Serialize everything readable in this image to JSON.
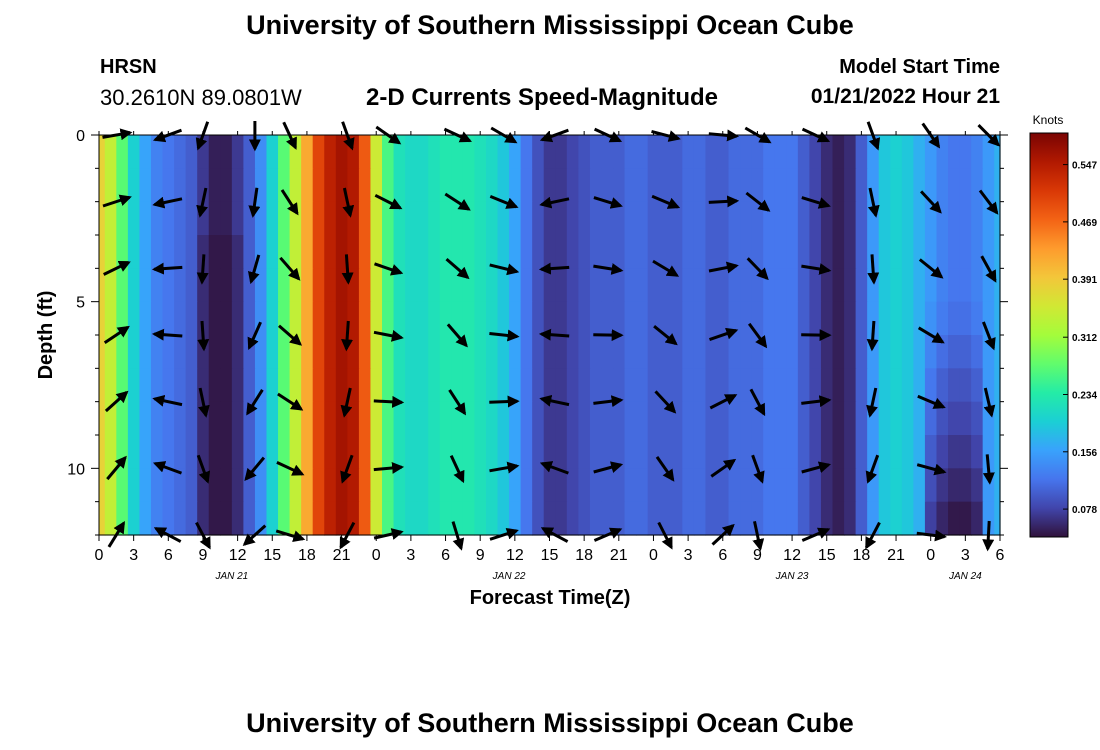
{
  "header": {
    "title": "University of Southern Mississippi Ocean Cube",
    "station": "HRSN",
    "coords": "30.2610N  89.0801W",
    "plot_title": "2-D Currents Speed-Magnitude",
    "start_label": "Model Start Time",
    "start_value": "01/21/2022 Hour 21"
  },
  "footer": {
    "title": "University of Southern Mississippi Ocean Cube"
  },
  "colors": [
    "#30123b",
    "#4145ab",
    "#4675ed",
    "#39a2fc",
    "#1bcfd4",
    "#24eca6",
    "#61fc6c",
    "#a4fc3b",
    "#d1e834",
    "#f3c63a",
    "#fe9b2d",
    "#f36315",
    "#d93806",
    "#b11901",
    "#7a0403"
  ],
  "chart_data": {
    "type": "heatmap",
    "xlabel": "Forecast Time(Z)",
    "ylabel": "Depth (ft)",
    "ylim": [
      0,
      12
    ],
    "y_ticks": [
      0,
      5,
      10
    ],
    "x_tick_labels": [
      "0",
      "3",
      "6",
      "9",
      "12",
      "15",
      "18",
      "21",
      "0",
      "3",
      "6",
      "9",
      "12",
      "15",
      "18",
      "21",
      "0",
      "3",
      "6",
      "9",
      "12",
      "15",
      "18",
      "21",
      "0",
      "3",
      "6"
    ],
    "day_labels": [
      {
        "label": "JAN 21",
        "hour": 11.5
      },
      {
        "label": "JAN 22",
        "hour": 35.5
      },
      {
        "label": "JAN 23",
        "hour": 60
      },
      {
        "label": "JAN 24",
        "hour": 75
      }
    ],
    "x_range": [
      0,
      78
    ],
    "colorbar": {
      "label": "Knots",
      "range": [
        0.04,
        0.59
      ],
      "ticks": [
        "0.078",
        "0.156",
        "0.234",
        "0.312",
        "0.391",
        "0.469",
        "0.547"
      ],
      "tick_values": [
        0.078,
        0.156,
        0.234,
        0.312,
        0.391,
        0.469,
        0.547
      ]
    },
    "speed_profile": {
      "hours": [
        0,
        1,
        2,
        3,
        4,
        5,
        6,
        7,
        8,
        9,
        10,
        11,
        12,
        13,
        14,
        15,
        16,
        17,
        18,
        19,
        20,
        21,
        22,
        23,
        24,
        25,
        26,
        27,
        28,
        29,
        30,
        31,
        32,
        33,
        34,
        35,
        36,
        37,
        38,
        39,
        40,
        41,
        42,
        43,
        44,
        45,
        46,
        47,
        48,
        49,
        50,
        51,
        52,
        53,
        54,
        55,
        56,
        57,
        58,
        59,
        60,
        61,
        62,
        63,
        64,
        65,
        66,
        67,
        68,
        69,
        70,
        71,
        72,
        73,
        74,
        75,
        76,
        77,
        78
      ],
      "values": [
        0.38,
        0.34,
        0.27,
        0.2,
        0.16,
        0.13,
        0.12,
        0.11,
        0.1,
        0.07,
        0.05,
        0.05,
        0.07,
        0.1,
        0.14,
        0.2,
        0.27,
        0.34,
        0.42,
        0.5,
        0.54,
        0.56,
        0.55,
        0.48,
        0.35,
        0.26,
        0.22,
        0.21,
        0.21,
        0.22,
        0.23,
        0.23,
        0.23,
        0.22,
        0.21,
        0.19,
        0.16,
        0.12,
        0.09,
        0.07,
        0.07,
        0.08,
        0.09,
        0.1,
        0.1,
        0.1,
        0.11,
        0.11,
        0.1,
        0.1,
        0.1,
        0.11,
        0.11,
        0.1,
        0.1,
        0.11,
        0.11,
        0.11,
        0.12,
        0.12,
        0.12,
        0.1,
        0.08,
        0.06,
        0.05,
        0.06,
        0.1,
        0.15,
        0.19,
        0.2,
        0.19,
        0.17,
        0.15,
        0.13,
        0.12,
        0.12,
        0.13,
        0.15,
        0.17
      ]
    },
    "vector_depths": [
      0,
      2,
      4,
      6,
      8,
      10,
      12
    ],
    "vector_hours": [
      1.5,
      6,
      9,
      13.5,
      16.5,
      21.5,
      25,
      31,
      35,
      39.5,
      44,
      49,
      54,
      57,
      62,
      67,
      72,
      77
    ]
  }
}
